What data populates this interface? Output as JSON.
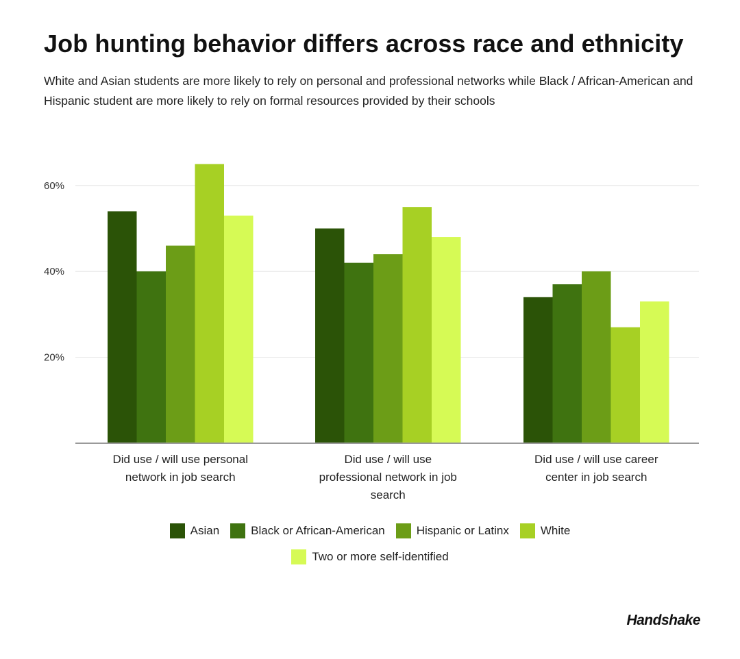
{
  "title": "Job hunting behavior differs across race and ethnicity",
  "subtitle": "White and Asian students are more likely to rely on personal and professional networks while Black / African-American and Hispanic student are more likely to rely on formal resources provided by their schools",
  "brand": "Handshake",
  "chart_data": {
    "type": "bar",
    "categories": [
      [
        "Did use / will use personal",
        "network in job search"
      ],
      [
        "Did use / will use",
        "professional network in job",
        "search"
      ],
      [
        "Did use / will use career",
        "center in job search"
      ]
    ],
    "series": [
      {
        "name": "Asian",
        "color": "#2b5307",
        "values": [
          54,
          50,
          34
        ]
      },
      {
        "name": "Black or African-American",
        "color": "#3f7310",
        "values": [
          40,
          42,
          37
        ]
      },
      {
        "name": "Hispanic or Latinx",
        "color": "#6c9d17",
        "values": [
          46,
          44,
          40
        ]
      },
      {
        "name": "White",
        "color": "#a7d024",
        "values": [
          65,
          55,
          27
        ]
      },
      {
        "name": "Two or more self-identified",
        "color": "#d6fa55",
        "values": [
          53,
          48,
          33
        ]
      }
    ],
    "yticks": [
      20,
      40,
      60
    ],
    "ytick_labels": [
      "20%",
      "40%",
      "60%"
    ],
    "ylim": [
      0,
      70
    ],
    "grid": true,
    "legend_position": "bottom"
  }
}
